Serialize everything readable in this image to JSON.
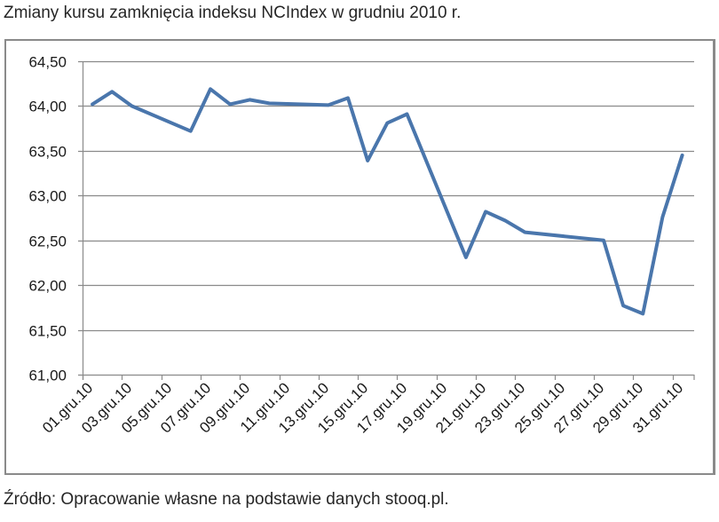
{
  "title": "Zmiany kursu zamknięcia indeksu NCIndex w grudniu 2010 r.",
  "source": "Źródło: Opracowanie własne na podstawie danych stooq.pl.",
  "colors": {
    "line": "#4A76AC",
    "grid": "#8a8a8a",
    "border": "#8a8a8a"
  },
  "chart_data": {
    "type": "line",
    "title": "Zmiany kursu zamknięcia indeksu NCIndex w grudniu 2010 r.",
    "xlabel": "",
    "ylabel": "",
    "ylim": [
      61.0,
      64.5
    ],
    "grid": true,
    "legend": null,
    "y_ticks": [
      "61,00",
      "61,50",
      "62,00",
      "62,50",
      "63,00",
      "63,50",
      "64,00",
      "64,50"
    ],
    "x_ticks": [
      "01.gru.10",
      "03.gru.10",
      "05.gru.10",
      "07.gru.10",
      "09.gru.10",
      "11.gru.10",
      "13.gru.10",
      "15.gru.10",
      "17.gru.10",
      "19.gru.10",
      "21.gru.10",
      "23.gru.10",
      "25.gru.10",
      "27.gru.10",
      "29.gru.10",
      "31.gru.10"
    ],
    "series": [
      {
        "name": "NCIndex",
        "x": [
          "01.gru.10",
          "02.gru.10",
          "03.gru.10",
          "06.gru.10",
          "07.gru.10",
          "08.gru.10",
          "09.gru.10",
          "10.gru.10",
          "13.gru.10",
          "14.gru.10",
          "15.gru.10",
          "16.gru.10",
          "17.gru.10",
          "20.gru.10",
          "21.gru.10",
          "22.gru.10",
          "23.gru.10",
          "27.gru.10",
          "28.gru.10",
          "29.gru.10",
          "30.gru.10",
          "31.gru.10"
        ],
        "day": [
          1,
          2,
          3,
          6,
          7,
          8,
          9,
          10,
          13,
          14,
          15,
          16,
          17,
          20,
          21,
          22,
          23,
          27,
          28,
          29,
          30,
          31
        ],
        "values": [
          64.02,
          64.16,
          64.0,
          63.72,
          64.19,
          64.02,
          64.07,
          64.03,
          64.01,
          64.09,
          63.39,
          63.81,
          63.91,
          62.31,
          62.82,
          62.72,
          62.59,
          62.5,
          61.77,
          61.68,
          62.76,
          63.45
        ]
      }
    ]
  }
}
